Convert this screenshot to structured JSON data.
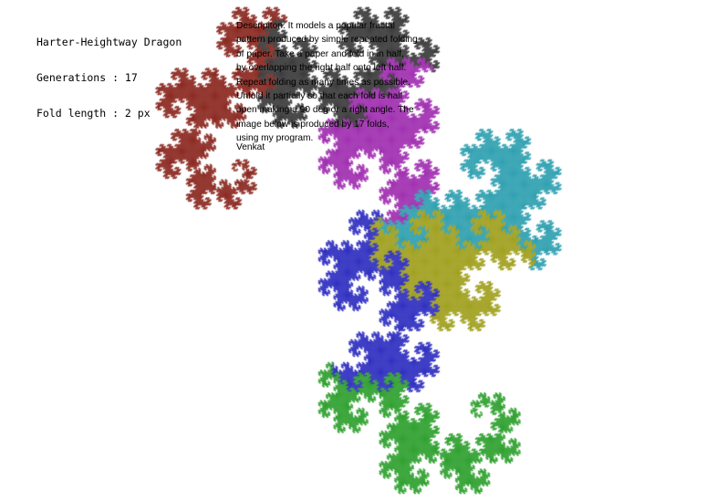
{
  "header": {
    "title": "Harter-Heightway Dragon",
    "generations": "Generations : 17",
    "fold_length": "Fold length : 2 px"
  },
  "description": {
    "lines": [
      "Descripiton: It models a popular fractal",
      "pattern produced by simple repeated folding",
      "of paper. Take a paper and fold in in half,",
      "by overlapping the right half onto left half.",
      "Repeat folding as many times as possible.",
      "Unfold it partially so that each fold is half",
      "open making a 90 deg or a right angle. The",
      "image below is produced by 17 folds,",
      "using my program."
    ],
    "author": "Venkat"
  },
  "dragon": {
    "generations": 17,
    "fold_length": 2,
    "palette": [
      "#8b2a22",
      "#3c3c3c",
      "#a030b0",
      "#30a0b0",
      "#a0a020",
      "#3030c0",
      "#30a030"
    ],
    "background": "#ffffff"
  }
}
